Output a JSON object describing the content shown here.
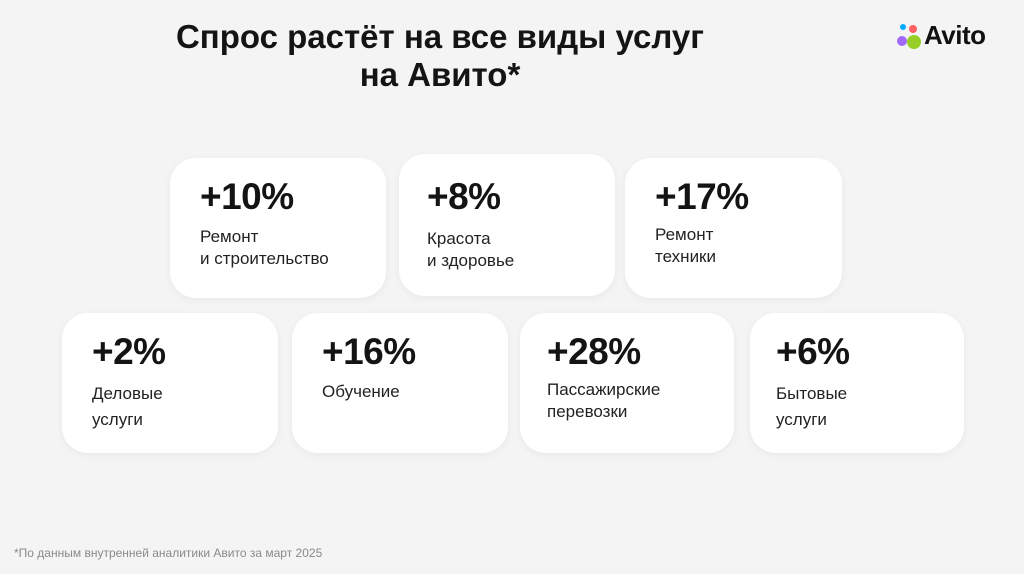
{
  "title": {
    "line1": "Спрос растёт на все виды услуг",
    "line2": "на Авито*"
  },
  "logo": {
    "text": "Avito",
    "dot_colors": [
      "#97cf26",
      "#a169f7",
      "#ff6163",
      "#00aaff"
    ]
  },
  "cards": [
    {
      "value": "+10%",
      "label_lines": [
        "Ремонт",
        "и строительство"
      ]
    },
    {
      "value": "+8%",
      "label_lines": [
        "Красота",
        "и здоровье"
      ]
    },
    {
      "value": "+17%",
      "label_lines": [
        "Ремонт",
        "техники"
      ]
    },
    {
      "value": "+2%",
      "label_lines": [
        "Деловые",
        "услуги"
      ]
    },
    {
      "value": "+16%",
      "label_lines": [
        "Обучение"
      ]
    },
    {
      "value": "+28%",
      "label_lines": [
        "Пассажирские",
        "перевозки"
      ]
    },
    {
      "value": "+6%",
      "label_lines": [
        "Бытовые",
        "услуги"
      ]
    }
  ],
  "footnote": "*По данным внутренней аналитики Авито за март 2025"
}
